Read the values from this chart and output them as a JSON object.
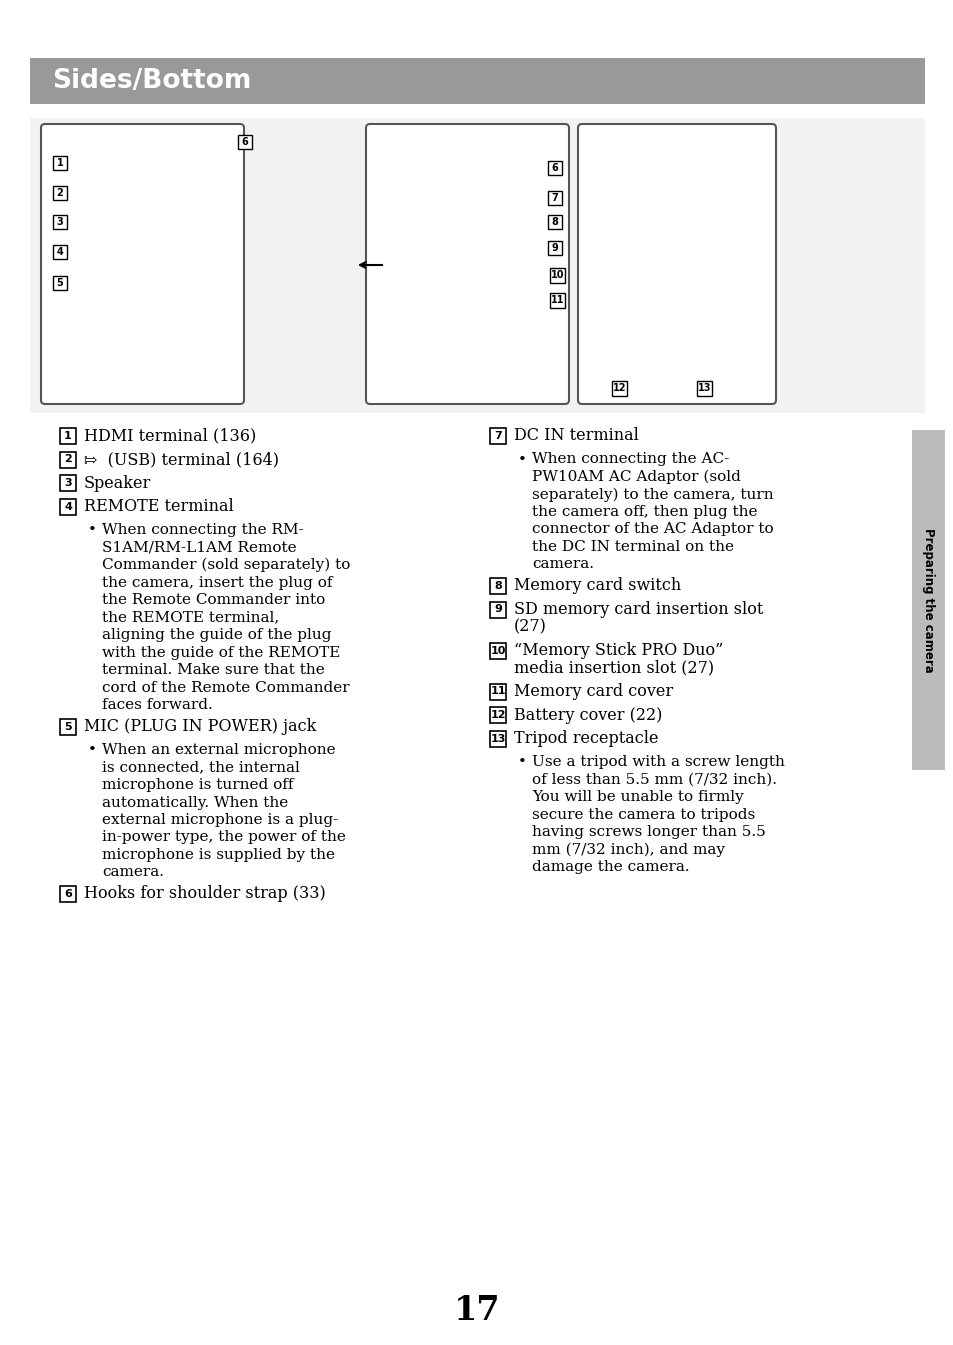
{
  "page_bg": "#ffffff",
  "header_bg": "#999999",
  "header_text": "Sides/Bottom",
  "header_text_color": "#ffffff",
  "sidebar_text": "Preparing the camera",
  "sidebar_bg": "#bbbbbb",
  "page_number": "17",
  "left_items": [
    {
      "num": "1",
      "text": "HDMI terminal (136)",
      "bullet": null
    },
    {
      "num": "2",
      "text": "⇰  (USB) terminal (164)",
      "bullet": null
    },
    {
      "num": "3",
      "text": "Speaker",
      "bullet": null
    },
    {
      "num": "4",
      "text": "REMOTE terminal",
      "bullet": "When connecting the RM-\nS1AM/RM-L1AM Remote\nCommander (sold separately) to\nthe camera, insert the plug of\nthe Remote Commander into\nthe REMOTE terminal,\naligning the guide of the plug\nwith the guide of the REMOTE\nterminal. Make sure that the\ncord of the Remote Commander\nfaces forward."
    },
    {
      "num": "5",
      "text": "MIC (PLUG IN POWER) jack",
      "bullet": "When an external microphone\nis connected, the internal\nmicrophone is turned off\nautomatically. When the\nexternal microphone is a plug-\nin-power type, the power of the\nmicrophone is supplied by the\ncamera."
    },
    {
      "num": "6",
      "text": "Hooks for shoulder strap (33)",
      "bullet": null
    }
  ],
  "right_items": [
    {
      "num": "7",
      "text": "DC IN terminal",
      "bullet": "When connecting the AC-\nPW10AM AC Adaptor (sold\nseparately) to the camera, turn\nthe camera off, then plug the\nconnector of the AC Adaptor to\nthe DC IN terminal on the\ncamera."
    },
    {
      "num": "8",
      "text": "Memory card switch",
      "bullet": null
    },
    {
      "num": "9",
      "text": "SD memory card insertion slot\n(27)",
      "bullet": null
    },
    {
      "num": "10",
      "text": "“Memory Stick PRO Duo”\nmedia insertion slot (27)",
      "bullet": null
    },
    {
      "num": "11",
      "text": "Memory card cover",
      "bullet": null
    },
    {
      "num": "12",
      "text": "Battery cover (22)",
      "bullet": null
    },
    {
      "num": "13",
      "text": "Tripod receptacle",
      "bullet": "Use a tripod with a screw length\nof less than 5.5 mm (7/32 inch).\nYou will be unable to firmly\nsecure the camera to tripods\nhaving screws longer than 5.5\nmm (7/32 inch), and may\ndamage the camera."
    }
  ]
}
